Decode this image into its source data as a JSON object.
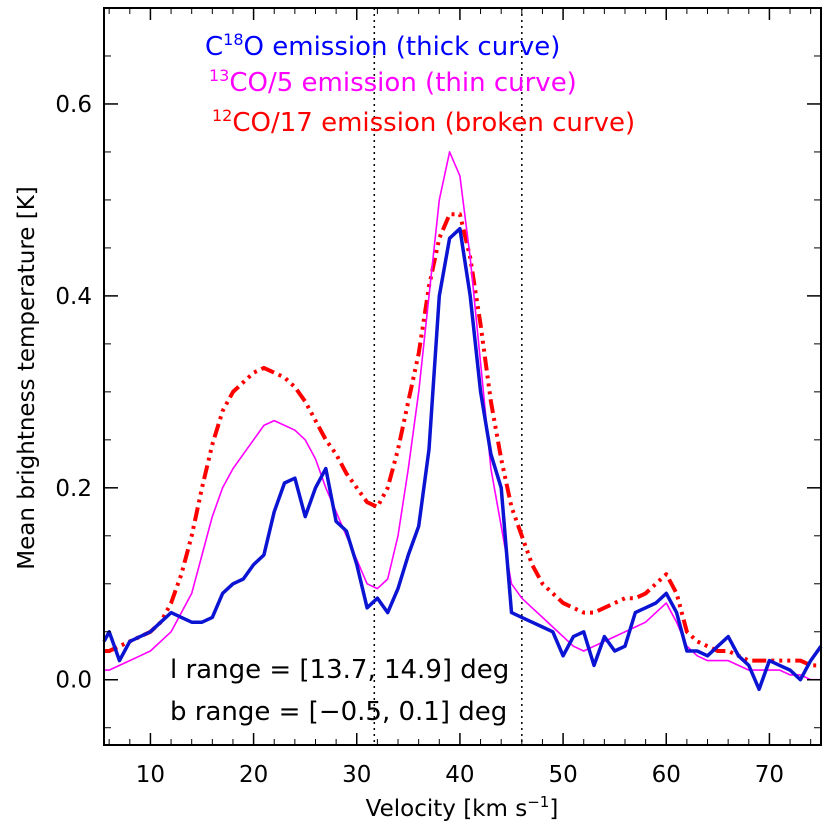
{
  "chart_data": {
    "type": "line",
    "xlabel": "Velocity [km s",
    "xlabel_sup": "−1",
    "xlabel_end": "]",
    "ylabel": "Mean brightness temperature [K]",
    "xlim": [
      5.5,
      75
    ],
    "ylim": [
      -0.068,
      0.7
    ],
    "x_ticks": [
      10,
      20,
      30,
      40,
      50,
      60,
      70
    ],
    "y_ticks": [
      0.0,
      0.2,
      0.4,
      0.6
    ],
    "y_tick_labels": [
      "0.0",
      "0.2",
      "0.4",
      "0.6"
    ],
    "vertical_lines": [
      31.7,
      46.0
    ],
    "legend": [
      {
        "prefix": "C",
        "sup": "18",
        "text": "O emission (thick curve)",
        "color": "#0000ff"
      },
      {
        "prefix": "",
        "sup": "13",
        "text": "CO/5  emission (thin curve)",
        "color": "#ff00ff"
      },
      {
        "prefix": "",
        "sup": "12",
        "text": "CO/17  emission (broken curve)",
        "color": "#ff0000"
      }
    ],
    "annotations": [
      "l range = [13.7, 14.9] deg",
      "b range = [−0.5, 0.1] deg"
    ],
    "series": [
      {
        "style": "thick",
        "color": "#0a14d2",
        "x": [
          5.5,
          6,
          7,
          8,
          9,
          10,
          11,
          12,
          13,
          14,
          15,
          16,
          17,
          18,
          19,
          20,
          21,
          22,
          23,
          24,
          25,
          26,
          27,
          28,
          29,
          30,
          31,
          32,
          33,
          34,
          35,
          36,
          37,
          38,
          39,
          40,
          41,
          42,
          43,
          44,
          45,
          46,
          47,
          48,
          49,
          50,
          51,
          52,
          53,
          54,
          55,
          56,
          57,
          58,
          59,
          60,
          61,
          62,
          63,
          64,
          65,
          66,
          67,
          68,
          69,
          70,
          71,
          72,
          73,
          74,
          75
        ],
        "y": [
          0.04,
          0.05,
          0.02,
          0.04,
          0.045,
          0.05,
          0.06,
          0.07,
          0.065,
          0.06,
          0.06,
          0.065,
          0.09,
          0.1,
          0.105,
          0.12,
          0.13,
          0.175,
          0.205,
          0.21,
          0.17,
          0.2,
          0.22,
          0.165,
          0.155,
          0.12,
          0.075,
          0.085,
          0.07,
          0.095,
          0.13,
          0.16,
          0.24,
          0.4,
          0.46,
          0.47,
          0.4,
          0.3,
          0.235,
          0.2,
          0.07,
          0.065,
          0.06,
          0.055,
          0.05,
          0.025,
          0.045,
          0.05,
          0.015,
          0.045,
          0.03,
          0.035,
          0.07,
          0.075,
          0.08,
          0.09,
          0.07,
          0.03,
          0.03,
          0.025,
          0.035,
          0.045,
          0.025,
          0.015,
          -0.01,
          0.02,
          0.015,
          0.01,
          0.0,
          0.02,
          0.035
        ]
      },
      {
        "style": "thin",
        "color": "#ff00ff",
        "x": [
          5.5,
          6,
          7,
          8,
          9,
          10,
          11,
          12,
          13,
          14,
          15,
          16,
          17,
          18,
          19,
          20,
          21,
          22,
          23,
          24,
          25,
          26,
          27,
          28,
          29,
          30,
          31,
          32,
          33,
          34,
          35,
          36,
          37,
          38,
          39,
          40,
          41,
          42,
          43,
          44,
          45,
          46,
          47,
          48,
          49,
          50,
          51,
          52,
          53,
          54,
          55,
          56,
          57,
          58,
          59,
          60,
          61,
          62,
          63,
          64,
          65,
          66,
          67,
          68,
          69,
          70,
          71,
          72,
          73,
          74,
          75
        ],
        "y": [
          0.01,
          0.01,
          0.015,
          0.02,
          0.025,
          0.03,
          0.04,
          0.05,
          0.07,
          0.09,
          0.13,
          0.17,
          0.2,
          0.22,
          0.235,
          0.25,
          0.265,
          0.27,
          0.265,
          0.26,
          0.25,
          0.23,
          0.2,
          0.175,
          0.15,
          0.125,
          0.1,
          0.095,
          0.105,
          0.15,
          0.22,
          0.3,
          0.4,
          0.5,
          0.55,
          0.525,
          0.44,
          0.33,
          0.22,
          0.16,
          0.1,
          0.085,
          0.075,
          0.065,
          0.055,
          0.045,
          0.035,
          0.03,
          0.035,
          0.04,
          0.045,
          0.05,
          0.055,
          0.06,
          0.07,
          0.08,
          0.06,
          0.035,
          0.025,
          0.02,
          0.02,
          0.02,
          0.015,
          0.01,
          0.01,
          0.01,
          0.01,
          0.005,
          0.005,
          0.0,
          0.0
        ]
      },
      {
        "style": "broken",
        "color": "#ff0000",
        "x": [
          5.5,
          6,
          7,
          8,
          9,
          10,
          11,
          12,
          13,
          14,
          15,
          16,
          17,
          18,
          19,
          20,
          21,
          22,
          23,
          24,
          25,
          26,
          27,
          28,
          29,
          30,
          31,
          32,
          33,
          34,
          35,
          36,
          37,
          38,
          39,
          40,
          41,
          42,
          43,
          44,
          45,
          46,
          47,
          48,
          49,
          50,
          51,
          52,
          53,
          54,
          55,
          56,
          57,
          58,
          59,
          60,
          61,
          62,
          63,
          64,
          65,
          66,
          67,
          68,
          69,
          70,
          71,
          72,
          73,
          74,
          75
        ],
        "y": [
          0.03,
          0.03,
          0.035,
          0.04,
          0.045,
          0.05,
          0.06,
          0.08,
          0.11,
          0.15,
          0.2,
          0.245,
          0.28,
          0.3,
          0.31,
          0.32,
          0.325,
          0.32,
          0.315,
          0.305,
          0.29,
          0.27,
          0.25,
          0.235,
          0.215,
          0.2,
          0.185,
          0.18,
          0.2,
          0.24,
          0.29,
          0.34,
          0.41,
          0.46,
          0.485,
          0.485,
          0.44,
          0.37,
          0.29,
          0.23,
          0.18,
          0.15,
          0.12,
          0.1,
          0.09,
          0.08,
          0.075,
          0.07,
          0.07,
          0.075,
          0.08,
          0.085,
          0.085,
          0.09,
          0.1,
          0.11,
          0.09,
          0.05,
          0.04,
          0.035,
          0.03,
          0.03,
          0.025,
          0.02,
          0.02,
          0.02,
          0.02,
          0.02,
          0.02,
          0.015,
          0.015
        ]
      }
    ]
  }
}
